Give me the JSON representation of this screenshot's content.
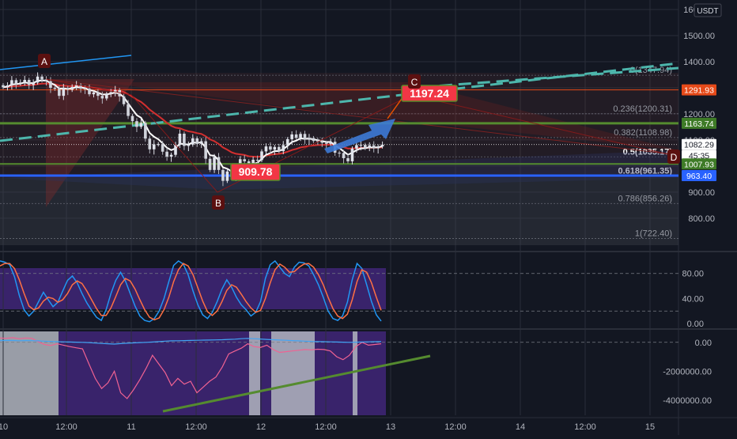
{
  "colors": {
    "background": "#131722",
    "grid": "#2a2e39",
    "up": "#26a69a",
    "down": "#ef5350",
    "ema_white": "#ffffff",
    "ema_red": "#d32f2f",
    "blue_line": "#2962ff",
    "teal_dash": "#4db6ac",
    "stoch_k": "#2196f3",
    "stoch_d": "#ff7043",
    "stoch_band": "#4a2a8a",
    "bottom_band": "#4a2a8a",
    "gray_band": "#b2b5be",
    "trend_green": "#558b2f",
    "arrow_blue": "#3d7ad6",
    "tag_red": "#f23645",
    "tag_green": "#3e7b27",
    "tag_blue": "#2962ff",
    "tag_orange": "#e64a19",
    "wave_label": "#5b1010"
  },
  "header": {
    "currency": "USDT"
  },
  "chart_data": [
    {
      "panel": "price",
      "type": "candlestick",
      "ylim": [
        700,
        1600
      ],
      "yticks": [
        "800.00",
        "900.00",
        "1000.00",
        "1100.00",
        "1200.00",
        "1300.00",
        "1400.00",
        "1500.00",
        "1600.00"
      ],
      "fib_levels": [
        {
          "label": "0(1347.94)",
          "value": 1347.94
        },
        {
          "label": "0.236(1200.31)",
          "value": 1200.31
        },
        {
          "label": "0.382(1108.98)",
          "value": 1108.98
        },
        {
          "label": "0.5(1035.17)",
          "value": 1035.17
        },
        {
          "label": "0.618(961.35)",
          "value": 961.35
        },
        {
          "label": "0.786(856.26)",
          "value": 856.26
        },
        {
          "label": "1(722.40)",
          "value": 722.4
        }
      ],
      "price_tags": [
        {
          "label": "1291.93",
          "value": 1291.93,
          "color": "#e64a19"
        },
        {
          "label": "1163.74",
          "value": 1163.74,
          "color": "#3e7b27"
        },
        {
          "label": "1082.29",
          "value": 1082.29,
          "color": "#ffffff"
        },
        {
          "label": "45:35",
          "value": 1058.0,
          "color": "#ffffff"
        },
        {
          "label": "1007.93",
          "value": 1007.93,
          "color": "#3e7b27"
        },
        {
          "label": "963.40",
          "value": 963.4,
          "color": "#2962ff"
        }
      ],
      "wave_labels": [
        "A",
        "B",
        "C",
        "D"
      ],
      "target_labels": [
        "1197.24",
        "909.78"
      ],
      "candles_close": [
        1302,
        1309,
        1329,
        1316,
        1320,
        1330,
        1311,
        1320,
        1343,
        1332,
        1325,
        1300,
        1296,
        1269,
        1299,
        1292,
        1303,
        1310,
        1297,
        1296,
        1275,
        1282,
        1269,
        1259,
        1276,
        1283,
        1291,
        1267,
        1237,
        1192,
        1172,
        1150,
        1165,
        1105,
        1064,
        1083,
        1084,
        1055,
        1036,
        1043,
        1081,
        1124,
        1077,
        1082,
        1106,
        1085,
        1095,
        1028,
        985,
        1034,
        985,
        943,
        979,
        958,
        993,
        1026,
        1018,
        989,
        1024,
        1023,
        1056,
        1075,
        1063,
        1073,
        1057,
        1080,
        1103,
        1121,
        1108,
        1123,
        1101,
        1107,
        1096,
        1093,
        1089,
        1085,
        1093,
        1051,
        1050,
        1030,
        1018,
        1067,
        1080,
        1081,
        1069,
        1079,
        1068,
        1075,
        1082
      ]
    },
    {
      "panel": "stoch",
      "type": "line",
      "ylim": [
        -5,
        110
      ],
      "yticks": [
        "0.00",
        "40.00",
        "80.00"
      ],
      "series": [
        {
          "values": [
            100,
            98,
            94,
            75,
            45,
            22,
            12,
            20,
            35,
            50,
            38,
            27,
            34,
            52,
            69,
            76,
            65,
            48,
            33,
            21,
            10,
            5,
            22,
            48,
            69,
            82,
            68,
            48,
            28,
            12,
            5,
            3,
            8,
            20,
            40,
            67,
            93,
            100,
            95,
            78,
            52,
            30,
            14,
            8,
            18,
            35,
            55,
            70,
            58,
            42,
            30,
            22,
            12,
            18,
            35,
            72,
            94,
            100,
            90,
            80,
            75,
            90,
            98,
            97,
            92,
            78,
            62,
            42,
            20,
            8,
            5,
            12,
            34,
            70,
            96,
            88,
            62,
            35,
            14,
            4
          ]
        },
        {
          "values": [
            92,
            96,
            96,
            88,
            70,
            48,
            28,
            22,
            25,
            36,
            42,
            40,
            34,
            38,
            48,
            62,
            68,
            64,
            52,
            38,
            24,
            13,
            13,
            25,
            43,
            62,
            72,
            68,
            55,
            38,
            22,
            10,
            6,
            9,
            22,
            42,
            67,
            86,
            96,
            92,
            78,
            57,
            36,
            19,
            13,
            20,
            35,
            53,
            62,
            58,
            47,
            35,
            25,
            18,
            21,
            40,
            65,
            86,
            95,
            90,
            82,
            83,
            90,
            95,
            96,
            90,
            78,
            62,
            42,
            24,
            12,
            8,
            15,
            38,
            67,
            86,
            82,
            65,
            42,
            21
          ]
        }
      ]
    },
    {
      "panel": "oscillator",
      "type": "line",
      "ylim": [
        -5000000,
        700000
      ],
      "yticks": [
        "0.00",
        "-2000000.00",
        "-4000000.00"
      ],
      "series": [
        {
          "values": [
            300000,
            280000,
            320000,
            250000,
            300000,
            280000,
            50000,
            -150000,
            -220000,
            -100000,
            -200000,
            -300000,
            -380000,
            -450000,
            -1500000,
            -2500000,
            -3200000,
            -2800000,
            -2000000,
            -3500000,
            -3900000,
            -3300000,
            -2600000,
            -1800000,
            -900000,
            -1500000,
            -2100000,
            -3000000,
            -2500000,
            -2900000,
            -2700000,
            -3500000,
            -3100000,
            -2700000,
            -2400000,
            -1700000,
            -800000,
            -600000,
            -400000,
            -100000,
            -300000,
            -350000,
            -200000,
            -500000,
            -700000,
            -650000,
            -600000,
            -550000,
            -500000,
            -520000,
            -480000,
            -500000,
            -600000,
            -1000000,
            -1200000,
            -900000,
            -300000,
            0,
            -200000,
            -150000,
            -100000
          ]
        },
        {
          "values": [
            120000,
            130000,
            125000,
            110000,
            120000,
            115000,
            100000,
            80000,
            60000,
            40000,
            30000,
            20000,
            10000,
            0,
            -20000,
            -50000,
            -80000,
            -100000,
            -120000,
            -90000,
            -60000,
            -40000,
            -20000,
            0,
            20000,
            50000,
            80000,
            100000,
            110000,
            120000,
            130000,
            140000,
            150000,
            160000,
            170000,
            180000,
            200000,
            220000,
            250000,
            270000,
            250000,
            230000,
            200000,
            180000,
            160000,
            140000,
            120000,
            100000,
            80000,
            60000,
            50000,
            40000,
            30000,
            20000,
            10000,
            0,
            10000,
            20000,
            30000,
            40000,
            50000
          ]
        }
      ]
    }
  ],
  "time_axis": {
    "labels": [
      "10",
      "12:00",
      "11",
      "12:00",
      "12",
      "12:00",
      "13",
      "12:00",
      "14",
      "12:00",
      "15"
    ]
  }
}
